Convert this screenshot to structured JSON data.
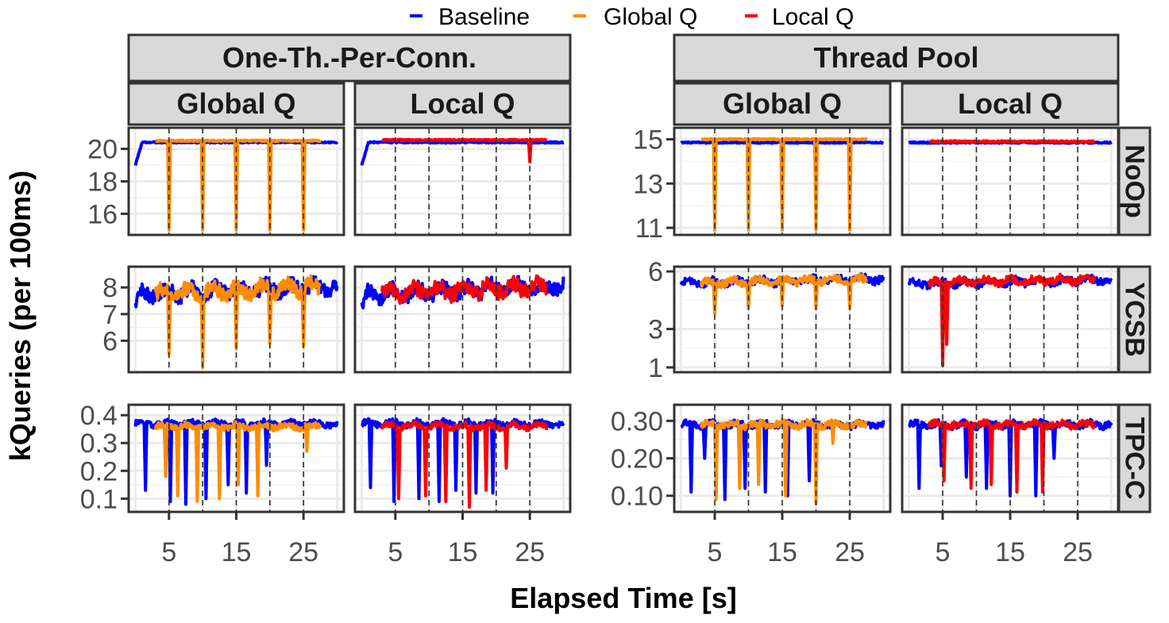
{
  "legend": {
    "items": [
      {
        "label": "Baseline",
        "color": "#0000ff"
      },
      {
        "label": "Global Q",
        "color": "#ff8c00"
      },
      {
        "label": "Local Q",
        "color": "#ff0000"
      }
    ]
  },
  "axes": {
    "xlabel": "Elapsed Time [s]",
    "ylabel": "kQueries (per 100ms)"
  },
  "facets": {
    "groups": [
      "One-Th.-Per-Conn.",
      "Thread Pool"
    ],
    "queues": [
      "Global Q",
      "Local Q"
    ],
    "workloads": [
      "NoOp",
      "YCSB",
      "TPC-C"
    ]
  },
  "chart_data": {
    "type": "line",
    "x_range": [
      -1,
      31
    ],
    "x_ticks": [
      5,
      15,
      25
    ],
    "x_tick_labels": [
      "5",
      "15",
      "25"
    ],
    "grid": true,
    "legend_position": "top",
    "duration_s": 30,
    "switch_times_s": [
      5,
      10,
      15,
      20,
      25
    ],
    "rows": [
      {
        "workload": "NoOp",
        "scales": {
          "One-Th.-Per-Conn.": {
            "ylim": [
              15,
              21
            ],
            "ticks": [
              16,
              18,
              20
            ],
            "tick_labels": [
              "16",
              "18",
              "20"
            ]
          },
          "Thread Pool": {
            "ylim": [
              10.9,
              15.3
            ],
            "ticks": [
              11,
              13,
              15
            ],
            "tick_labels": [
              "11",
              "13",
              "15"
            ]
          }
        },
        "panels": [
          {
            "group": "One-Th.-Per-Conn.",
            "queue": "Global Q",
            "series": [
              {
                "name": "Baseline",
                "level": 20.4,
                "start": 19.0,
                "dips": []
              },
              {
                "name": "Global Q",
                "level": 20.5,
                "start": 3.0,
                "end": 27.5,
                "dips": [
                  [
                    5,
                    15.0
                  ],
                  [
                    10,
                    15.0
                  ],
                  [
                    15,
                    15.0
                  ],
                  [
                    20,
                    15.0
                  ],
                  [
                    25,
                    15.0
                  ]
                ]
              }
            ]
          },
          {
            "group": "One-Th.-Per-Conn.",
            "queue": "Local Q",
            "series": [
              {
                "name": "Baseline",
                "level": 20.4,
                "start": 19.0,
                "dips": []
              },
              {
                "name": "Local Q",
                "level": 20.55,
                "start": 3.0,
                "end": 27.5,
                "dips": [
                  [
                    25,
                    19.2
                  ]
                ]
              }
            ]
          },
          {
            "group": "Thread Pool",
            "queue": "Global Q",
            "series": [
              {
                "name": "Baseline",
                "level": 14.85,
                "dips": []
              },
              {
                "name": "Global Q",
                "level": 15.0,
                "start": 3.0,
                "end": 27.5,
                "dips": [
                  [
                    5,
                    10.9
                  ],
                  [
                    10,
                    10.9
                  ],
                  [
                    15,
                    10.9
                  ],
                  [
                    20,
                    10.9
                  ],
                  [
                    25,
                    10.9
                  ]
                ]
              }
            ]
          },
          {
            "group": "Thread Pool",
            "queue": "Local Q",
            "series": [
              {
                "name": "Baseline",
                "level": 14.85,
                "dips": []
              },
              {
                "name": "Local Q",
                "level": 14.9,
                "start": 3.0,
                "end": 27.5,
                "dips": []
              }
            ]
          }
        ]
      },
      {
        "workload": "YCSB",
        "scales": {
          "One-Th.-Per-Conn.": {
            "ylim": [
              5,
              8.6
            ],
            "ticks": [
              6,
              7,
              8
            ],
            "tick_labels": [
              "6",
              "7",
              "8"
            ]
          },
          "Thread Pool": {
            "ylim": [
              1,
              6
            ],
            "ticks": [
              1,
              3,
              6
            ],
            "tick_labels": [
              "1",
              "3",
              "6"
            ]
          }
        },
        "panels": [
          {
            "group": "One-Th.-Per-Conn.",
            "queue": "Global Q",
            "series": [
              {
                "name": "Baseline",
                "level": 7.9,
                "start": 7.5,
                "dips": []
              },
              {
                "name": "Global Q",
                "level": 7.9,
                "start": 3.0,
                "end": 27.5,
                "dips": [
                  [
                    5,
                    5.5
                  ],
                  [
                    10,
                    5.0
                  ],
                  [
                    15,
                    5.7
                  ],
                  [
                    20,
                    5.9
                  ],
                  [
                    25,
                    5.8
                  ]
                ]
              }
            ]
          },
          {
            "group": "One-Th.-Per-Conn.",
            "queue": "Local Q",
            "series": [
              {
                "name": "Baseline",
                "level": 7.9,
                "start": 7.5,
                "dips": []
              },
              {
                "name": "Local Q",
                "level": 7.9,
                "start": 3.0,
                "end": 27.5,
                "dips": []
              }
            ]
          },
          {
            "group": "Thread Pool",
            "queue": "Global Q",
            "series": [
              {
                "name": "Baseline",
                "level": 5.5,
                "dips": []
              },
              {
                "name": "Global Q",
                "level": 5.5,
                "start": 3.0,
                "end": 27.5,
                "dips": [
                  [
                    5,
                    3.8
                  ],
                  [
                    10,
                    4.1
                  ],
                  [
                    15,
                    4.2
                  ],
                  [
                    20,
                    4.1
                  ],
                  [
                    25,
                    4.1
                  ]
                ]
              }
            ]
          },
          {
            "group": "Thread Pool",
            "queue": "Local Q",
            "series": [
              {
                "name": "Baseline",
                "level": 5.45,
                "dips": []
              },
              {
                "name": "Local Q",
                "level": 5.5,
                "start": 3.0,
                "end": 27.5,
                "dips": [
                  [
                    5,
                    1.1
                  ],
                  [
                    5.6,
                    2.2
                  ]
                ]
              }
            ]
          }
        ]
      },
      {
        "workload": "TPC-C",
        "scales": {
          "One-Th.-Per-Conn.": {
            "ylim": [
              0.07,
              0.42
            ],
            "ticks": [
              0.1,
              0.2,
              0.3,
              0.4
            ],
            "tick_labels": [
              "0.1",
              "0.2",
              "0.3",
              "0.4"
            ]
          },
          "Thread Pool": {
            "ylim": [
              0.07,
              0.33
            ],
            "ticks": [
              0.1,
              0.2,
              0.3
            ],
            "tick_labels": [
              "0.10",
              "0.20",
              "0.30"
            ]
          }
        },
        "panels": [
          {
            "group": "One-Th.-Per-Conn.",
            "queue": "Global Q",
            "series": [
              {
                "name": "Baseline",
                "level": 0.37,
                "dips": [
                  [
                    1.5,
                    0.13
                  ],
                  [
                    5.2,
                    0.09
                  ],
                  [
                    7.5,
                    0.08
                  ],
                  [
                    10.5,
                    0.1
                  ],
                  [
                    13.8,
                    0.15
                  ],
                  [
                    16.5,
                    0.12
                  ],
                  [
                    19.5,
                    0.22
                  ]
                ]
              },
              {
                "name": "Global Q",
                "level": 0.36,
                "start": 3.0,
                "end": 27.5,
                "dips": [
                  [
                    4.5,
                    0.18
                  ],
                  [
                    6.3,
                    0.11
                  ],
                  [
                    9.2,
                    0.09
                  ],
                  [
                    12.5,
                    0.1
                  ],
                  [
                    15.3,
                    0.15
                  ],
                  [
                    18.2,
                    0.11
                  ],
                  [
                    25.5,
                    0.27
                  ]
                ]
              }
            ]
          },
          {
            "group": "One-Th.-Per-Conn.",
            "queue": "Local Q",
            "series": [
              {
                "name": "Baseline",
                "level": 0.37,
                "dips": [
                  [
                    1.3,
                    0.14
                  ],
                  [
                    4.8,
                    0.09
                  ],
                  [
                    8.5,
                    0.1
                  ],
                  [
                    11.5,
                    0.09
                  ],
                  [
                    14.0,
                    0.13
                  ],
                  [
                    17.0,
                    0.12
                  ],
                  [
                    19.5,
                    0.12
                  ]
                ]
              },
              {
                "name": "Local Q",
                "level": 0.36,
                "start": 3.0,
                "end": 27.5,
                "dips": [
                  [
                    5.5,
                    0.1
                  ],
                  [
                    9.5,
                    0.11
                  ],
                  [
                    12.5,
                    0.09
                  ],
                  [
                    16.0,
                    0.07
                  ],
                  [
                    18.5,
                    0.13
                  ],
                  [
                    21.5,
                    0.21
                  ]
                ]
              }
            ]
          },
          {
            "group": "Thread Pool",
            "queue": "Global Q",
            "series": [
              {
                "name": "Baseline",
                "level": 0.29,
                "dips": [
                  [
                    1.5,
                    0.11
                  ],
                  [
                    3.5,
                    0.2
                  ],
                  [
                    6.5,
                    0.09
                  ],
                  [
                    9.5,
                    0.12
                  ],
                  [
                    12.5,
                    0.11
                  ],
                  [
                    15.8,
                    0.1
                  ],
                  [
                    19.0,
                    0.14
                  ]
                ]
              },
              {
                "name": "Global Q",
                "level": 0.29,
                "start": 3.0,
                "end": 27.5,
                "dips": [
                  [
                    5.2,
                    0.09
                  ],
                  [
                    8.7,
                    0.12
                  ],
                  [
                    11.5,
                    0.13
                  ],
                  [
                    15.5,
                    0.1
                  ],
                  [
                    20.0,
                    0.08
                  ],
                  [
                    22.5,
                    0.24
                  ]
                ]
              }
            ]
          },
          {
            "group": "Thread Pool",
            "queue": "Local Q",
            "series": [
              {
                "name": "Baseline",
                "level": 0.29,
                "dips": [
                  [
                    1.5,
                    0.12
                  ],
                  [
                    4.8,
                    0.18
                  ],
                  [
                    8.5,
                    0.15
                  ],
                  [
                    11.5,
                    0.12
                  ],
                  [
                    15.0,
                    0.1
                  ],
                  [
                    18.8,
                    0.1
                  ],
                  [
                    21.5,
                    0.2
                  ]
                ]
              },
              {
                "name": "Local Q",
                "level": 0.29,
                "start": 3.0,
                "end": 27.5,
                "dips": [
                  [
                    5.2,
                    0.14
                  ],
                  [
                    9.2,
                    0.12
                  ],
                  [
                    12.2,
                    0.13
                  ],
                  [
                    16.0,
                    0.11
                  ],
                  [
                    19.8,
                    0.11
                  ]
                ]
              }
            ]
          }
        ]
      }
    ]
  }
}
